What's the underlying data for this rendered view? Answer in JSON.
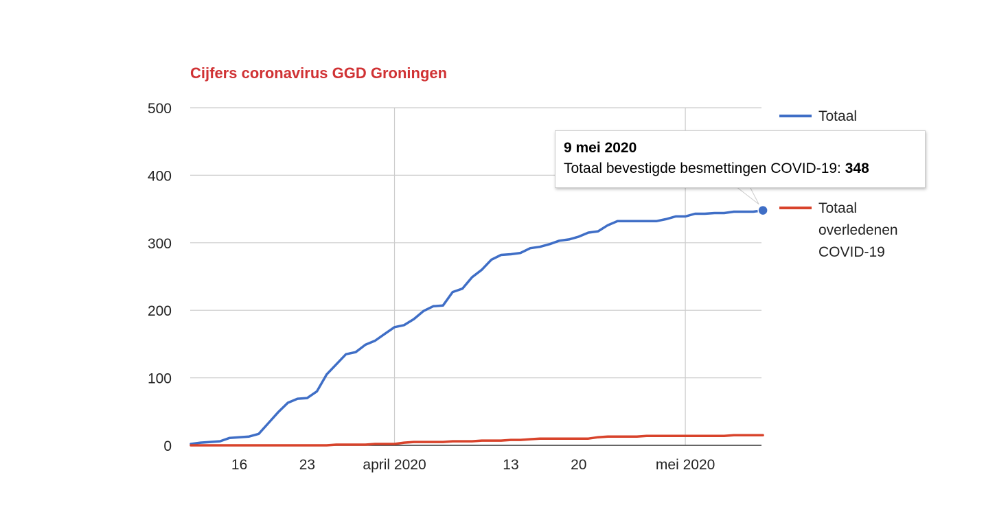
{
  "colors": {
    "title": "#d03234",
    "series_total": "#3f6ec6",
    "series_deaths": "#d8432b",
    "grid": "#cccccc",
    "axis": "#333333"
  },
  "chart_data": {
    "type": "line",
    "title": "Cijfers coronavirus GGD Groningen",
    "xlabel": "",
    "ylabel": "",
    "ylim": [
      0,
      500
    ],
    "yticks": [
      0,
      100,
      200,
      300,
      400,
      500
    ],
    "x_start": "2020-03-11",
    "x_end": "2020-05-09",
    "xticks": [
      {
        "day": 5,
        "label": "16",
        "major": false
      },
      {
        "day": 12,
        "label": "23",
        "major": false
      },
      {
        "day": 21,
        "label": "april 2020",
        "major": true
      },
      {
        "day": 33,
        "label": "13",
        "major": false
      },
      {
        "day": 40,
        "label": "20",
        "major": false
      },
      {
        "day": 51,
        "label": "mei 2020",
        "major": true
      }
    ],
    "legend_position": "right",
    "series": [
      {
        "name": "Totaal",
        "color": "#3f6ec6",
        "x": [
          0,
          1,
          2,
          3,
          4,
          5,
          6,
          7,
          8,
          9,
          10,
          11,
          12,
          13,
          14,
          15,
          16,
          17,
          18,
          19,
          20,
          21,
          22,
          23,
          24,
          25,
          26,
          27,
          28,
          29,
          30,
          31,
          32,
          33,
          34,
          35,
          36,
          37,
          38,
          39,
          40,
          41,
          42,
          43,
          44,
          45,
          46,
          47,
          48,
          49,
          50,
          51,
          52,
          53,
          54,
          55,
          56,
          57,
          58,
          59
        ],
        "values": [
          2,
          4,
          5,
          6,
          11,
          12,
          13,
          17,
          33,
          49,
          63,
          69,
          70,
          80,
          105,
          120,
          135,
          138,
          149,
          155,
          165,
          175,
          178,
          187,
          199,
          206,
          207,
          227,
          232,
          249,
          260,
          275,
          282,
          283,
          285,
          292,
          294,
          298,
          303,
          305,
          309,
          315,
          317,
          326,
          332,
          332,
          332,
          332,
          332,
          335,
          339,
          339,
          343,
          343,
          344,
          344,
          346,
          346,
          346,
          348
        ]
      },
      {
        "name": "Totaal overledenen COVID-19",
        "label_lines": [
          "Totaal",
          "overledenen",
          "COVID-19"
        ],
        "color": "#d8432b",
        "x": [
          0,
          1,
          2,
          3,
          4,
          5,
          6,
          7,
          8,
          9,
          10,
          11,
          12,
          13,
          14,
          15,
          16,
          17,
          18,
          19,
          20,
          21,
          22,
          23,
          24,
          25,
          26,
          27,
          28,
          29,
          30,
          31,
          32,
          33,
          34,
          35,
          36,
          37,
          38,
          39,
          40,
          41,
          42,
          43,
          44,
          45,
          46,
          47,
          48,
          49,
          50,
          51,
          52,
          53,
          54,
          55,
          56,
          57,
          58,
          59
        ],
        "values": [
          0,
          0,
          0,
          0,
          0,
          0,
          0,
          0,
          0,
          0,
          0,
          0,
          0,
          0,
          0,
          1,
          1,
          1,
          1,
          2,
          2,
          2,
          4,
          5,
          5,
          5,
          5,
          6,
          6,
          6,
          7,
          7,
          7,
          8,
          8,
          9,
          10,
          10,
          10,
          10,
          10,
          10,
          12,
          13,
          13,
          13,
          13,
          14,
          14,
          14,
          14,
          14,
          14,
          14,
          14,
          14,
          15,
          15,
          15,
          15
        ]
      }
    ],
    "tooltip": {
      "date": "9 mei 2020",
      "label": "Totaal bevestigde besmettingen COVID-19:",
      "value": "348",
      "series_index": 0,
      "point_index": 59
    }
  }
}
